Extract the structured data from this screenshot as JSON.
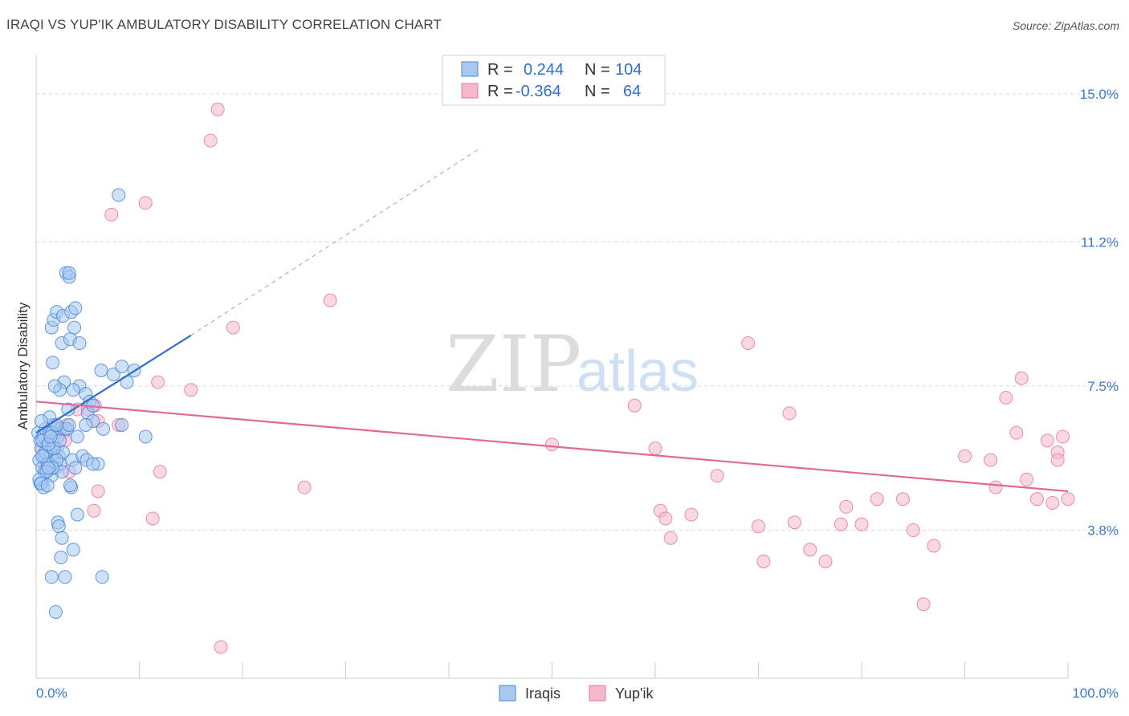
{
  "title": "IRAQI VS YUP'IK AMBULATORY DISABILITY CORRELATION CHART",
  "source": "Source: ZipAtlas.com",
  "watermark": {
    "zip": "ZIP",
    "atlas": "atlas"
  },
  "colors": {
    "iraqis_fill": "#a8c8f0",
    "iraqis_stroke": "#4a86d6",
    "iraqis_line": "#2f6fd0",
    "yupik_fill": "#f5b8cb",
    "yupik_stroke": "#e57a9d",
    "yupik_line": "#e06a93",
    "value_text": "#2f6fd0",
    "grid": "#d8d8d8"
  },
  "legend": {
    "rows": [
      {
        "series": "Iraqis",
        "r_label": "R = ",
        "r_value": "0.244",
        "n_label": "N = ",
        "n_value": "104"
      },
      {
        "series": "Yup'ik",
        "r_label": "R = ",
        "r_value": "-0.364",
        "n_label": "N = ",
        "n_value": "64"
      }
    ]
  },
  "bottom_legend": [
    "Iraqis",
    "Yup'ik"
  ],
  "chart_data": {
    "type": "scatter",
    "title": "IRAQI VS YUP'IK AMBULATORY DISABILITY CORRELATION CHART",
    "xlabel": "",
    "ylabel": "Ambulatory Disability",
    "xlim": [
      0,
      100
    ],
    "ylim": [
      0,
      15.8
    ],
    "x_tick_labels": [
      {
        "value": 0,
        "label": "0.0%"
      },
      {
        "value": 100,
        "label": "100.0%"
      }
    ],
    "x_minor_ticks": [
      10,
      20,
      30,
      40,
      50,
      60,
      70,
      80,
      90,
      100
    ],
    "y_ticks": [
      {
        "value": 3.8,
        "label": "3.8%"
      },
      {
        "value": 7.5,
        "label": "7.5%"
      },
      {
        "value": 11.2,
        "label": "11.2%"
      },
      {
        "value": 15.0,
        "label": "15.0%"
      }
    ],
    "series": [
      {
        "name": "Iraqis",
        "trend": {
          "x": [
            0,
            15
          ],
          "y": [
            6.3,
            8.8
          ],
          "dashed_to": {
            "x": 43,
            "y": 13.6
          }
        },
        "points": [
          [
            0.2,
            6.3
          ],
          [
            0.3,
            5.6
          ],
          [
            0.4,
            6.1
          ],
          [
            0.5,
            5.9
          ],
          [
            0.6,
            5.4
          ],
          [
            0.7,
            6.2
          ],
          [
            0.8,
            5.7
          ],
          [
            0.9,
            6.4
          ],
          [
            1.0,
            5.3
          ],
          [
            1.1,
            6.0
          ],
          [
            1.2,
            5.5
          ],
          [
            1.3,
            6.3
          ],
          [
            1.4,
            5.8
          ],
          [
            1.5,
            5.2
          ],
          [
            1.6,
            6.1
          ],
          [
            1.7,
            5.6
          ],
          [
            1.8,
            6.5
          ],
          [
            1.9,
            5.4
          ],
          [
            2.0,
            5.9
          ],
          [
            2.1,
            6.2
          ],
          [
            2.2,
            5.7
          ],
          [
            2.3,
            5.5
          ],
          [
            2.4,
            6.4
          ],
          [
            2.5,
            5.3
          ],
          [
            2.6,
            5.8
          ],
          [
            0.4,
            5.0
          ],
          [
            0.7,
            4.9
          ],
          [
            1.1,
            5.5
          ],
          [
            1.3,
            6.7
          ],
          [
            2.8,
            6.4
          ],
          [
            0.6,
            6.1
          ],
          [
            0.9,
            5.8
          ],
          [
            1.5,
            6.3
          ],
          [
            2.0,
            5.6
          ],
          [
            1.7,
            5.9
          ],
          [
            0.5,
            6.6
          ],
          [
            0.8,
            5.3
          ],
          [
            1.2,
            6.0
          ],
          [
            1.6,
            5.4
          ],
          [
            2.3,
            6.1
          ],
          [
            3.0,
            6.4
          ],
          [
            3.5,
            5.6
          ],
          [
            4.0,
            6.2
          ],
          [
            4.5,
            5.7
          ],
          [
            5.0,
            6.8
          ],
          [
            5.5,
            6.6
          ],
          [
            6.0,
            5.5
          ],
          [
            6.5,
            6.4
          ],
          [
            3.2,
            6.5
          ],
          [
            3.8,
            5.4
          ],
          [
            4.8,
            6.5
          ],
          [
            4.2,
            7.5
          ],
          [
            4.8,
            7.3
          ],
          [
            5.2,
            7.1
          ],
          [
            3.6,
            7.4
          ],
          [
            3.1,
            6.9
          ],
          [
            2.7,
            7.6
          ],
          [
            2.3,
            7.4
          ],
          [
            1.8,
            7.5
          ],
          [
            5.5,
            7.0
          ],
          [
            6.3,
            7.9
          ],
          [
            7.5,
            7.8
          ],
          [
            8.3,
            8.0
          ],
          [
            8.8,
            7.6
          ],
          [
            9.5,
            7.9
          ],
          [
            2.5,
            8.6
          ],
          [
            3.3,
            8.7
          ],
          [
            4.2,
            8.6
          ],
          [
            3.7,
            9.0
          ],
          [
            1.5,
            9.0
          ],
          [
            1.7,
            9.2
          ],
          [
            2.0,
            9.4
          ],
          [
            2.6,
            9.3
          ],
          [
            3.4,
            9.4
          ],
          [
            3.8,
            9.5
          ],
          [
            2.9,
            10.4
          ],
          [
            3.2,
            10.3
          ],
          [
            1.6,
            8.1
          ],
          [
            8.0,
            12.4
          ],
          [
            3.2,
            10.4
          ],
          [
            10.6,
            6.2
          ],
          [
            8.3,
            6.5
          ],
          [
            2.1,
            4.0
          ],
          [
            2.2,
            3.9
          ],
          [
            4.0,
            4.2
          ],
          [
            3.6,
            3.3
          ],
          [
            2.5,
            3.6
          ],
          [
            2.4,
            3.1
          ],
          [
            1.5,
            2.6
          ],
          [
            2.8,
            2.6
          ],
          [
            6.4,
            2.6
          ],
          [
            1.9,
            1.7
          ],
          [
            4.9,
            5.6
          ],
          [
            5.5,
            5.5
          ],
          [
            1.0,
            5.3
          ],
          [
            1.2,
            5.4
          ],
          [
            0.3,
            5.1
          ],
          [
            0.5,
            5.0
          ],
          [
            3.4,
            4.9
          ],
          [
            2.0,
            6.5
          ],
          [
            1.4,
            6.2
          ],
          [
            0.6,
            5.7
          ],
          [
            1.1,
            4.95
          ],
          [
            3.3,
            4.95
          ]
        ]
      },
      {
        "name": "Yup'ik",
        "trend": {
          "x": [
            0,
            100
          ],
          "y": [
            7.1,
            4.8
          ]
        },
        "points": [
          [
            17.6,
            14.6
          ],
          [
            16.9,
            13.8
          ],
          [
            10.6,
            12.2
          ],
          [
            7.3,
            11.9
          ],
          [
            28.5,
            9.7
          ],
          [
            19.1,
            9.0
          ],
          [
            11.8,
            7.6
          ],
          [
            15.0,
            7.4
          ],
          [
            4.0,
            6.9
          ],
          [
            5.7,
            7.0
          ],
          [
            5.0,
            6.9
          ],
          [
            6.0,
            6.6
          ],
          [
            8.0,
            6.5
          ],
          [
            1.5,
            6.5
          ],
          [
            2.6,
            6.3
          ],
          [
            3.0,
            6.5
          ],
          [
            2.1,
            6.4
          ],
          [
            2.8,
            6.1
          ],
          [
            0.5,
            5.9
          ],
          [
            1.2,
            6.2
          ],
          [
            3.2,
            5.3
          ],
          [
            6.0,
            4.8
          ],
          [
            5.6,
            4.3
          ],
          [
            11.3,
            4.1
          ],
          [
            12.0,
            5.3
          ],
          [
            26.0,
            4.9
          ],
          [
            17.9,
            0.8
          ],
          [
            50.0,
            6.0
          ],
          [
            58.0,
            7.0
          ],
          [
            60.0,
            5.9
          ],
          [
            69.0,
            8.6
          ],
          [
            73.0,
            6.8
          ],
          [
            66.0,
            5.2
          ],
          [
            60.5,
            4.3
          ],
          [
            61.0,
            4.1
          ],
          [
            61.5,
            3.6
          ],
          [
            63.5,
            4.2
          ],
          [
            70.5,
            3.0
          ],
          [
            75.0,
            3.3
          ],
          [
            76.5,
            3.0
          ],
          [
            70.0,
            3.9
          ],
          [
            73.5,
            4.0
          ],
          [
            78.0,
            3.95
          ],
          [
            80.0,
            3.95
          ],
          [
            85.0,
            3.8
          ],
          [
            78.5,
            4.4
          ],
          [
            81.5,
            4.6
          ],
          [
            84.0,
            4.6
          ],
          [
            87.0,
            3.4
          ],
          [
            86.0,
            1.9
          ],
          [
            95.0,
            6.3
          ],
          [
            90.0,
            5.7
          ],
          [
            92.5,
            5.6
          ],
          [
            96.0,
            5.1
          ],
          [
            97.0,
            4.6
          ],
          [
            98.5,
            4.5
          ],
          [
            98.0,
            6.1
          ],
          [
            99.0,
            5.8
          ],
          [
            99.5,
            6.2
          ],
          [
            99.0,
            5.6
          ],
          [
            100.0,
            4.6
          ],
          [
            93.0,
            4.9
          ],
          [
            95.5,
            7.7
          ],
          [
            94.0,
            7.2
          ]
        ]
      }
    ]
  }
}
